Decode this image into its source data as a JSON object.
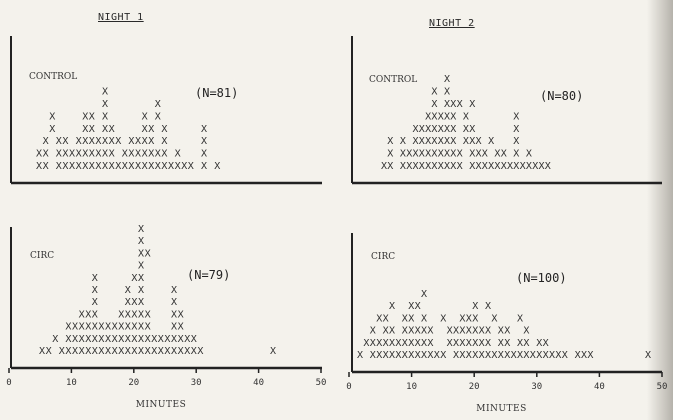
{
  "titles": {
    "night1": "NIGHT 1",
    "night2": "NIGHT 2"
  },
  "chart_data": [
    {
      "type": "scatter",
      "panel": "night1-control",
      "group_label": "CONTROL",
      "n_label": "(N=81)",
      "xlabel": "",
      "ylabel": "",
      "xlim": [
        0,
        50
      ],
      "rows": [
        "XX XXXXXXXXXXXXXXXXXXXXX X X",
        "XX XXXXXXXXX XXXXXXX X   X",
        " X XX XXXXXXX XXXX X     X",
        "  X    XX XX    XX X     X",
        "  X    XX X     X X",
        "          X       X",
        "          X"
      ]
    },
    {
      "type": "scatter",
      "panel": "night2-control",
      "group_label": "CONTROL",
      "n_label": "(N=80)",
      "xlabel": "",
      "ylabel": "",
      "xlim": [
        0,
        50
      ],
      "rows": [
        "XX XXXXXXXXXX XXXXXXXXXXXXX",
        " X XXXXXXXXXX XXX XX X X",
        " X X XXXXXXX XXX X   X",
        "     XXXXXXX XX      X",
        "       XXXXX X       X",
        "        X XXX X",
        "        X X",
        "          X"
      ]
    },
    {
      "type": "scatter",
      "panel": "night1-circ",
      "group_label": "CIRC",
      "n_label": "(N=79)",
      "xlabel": "MINUTES",
      "ylabel": "",
      "x_ticks": [
        "0",
        "10",
        "20",
        "30",
        "40",
        "50"
      ],
      "xlim": [
        0,
        50
      ],
      "rows": [
        "XX XXXXXXXXXXXXXXXXXXXXXX          X",
        "  X XXXXXXXXXXXXXXXXXXXX",
        "    XXXXXXXXXXXXX   XX",
        "      XXX   XXXXX   XX",
        "        X    XXX    X",
        "        X    X X    X",
        "        X     XX",
        "               X",
        "               XX",
        "               X",
        "               X"
      ]
    },
    {
      "type": "scatter",
      "panel": "night2-circ",
      "group_label": "CIRC",
      "n_label": "(N=100)",
      "xlabel": "MINUTES",
      "ylabel": "",
      "x_ticks": [
        "0",
        "10",
        "20",
        "30",
        "40",
        "50"
      ],
      "xlim": [
        0,
        50
      ],
      "rows": [
        "X XXXXXXXXXXXX XXXXXXXXXXXXXXXXXX XXX        X",
        " XXXXXXXXXXX  XXXXXXX XX XX XX",
        "  X XX XXXXX  XXXXXXX XX  X",
        "   XX  XX X  X  XXX  X   X",
        "     X  XX        X X",
        "          X"
      ]
    }
  ]
}
